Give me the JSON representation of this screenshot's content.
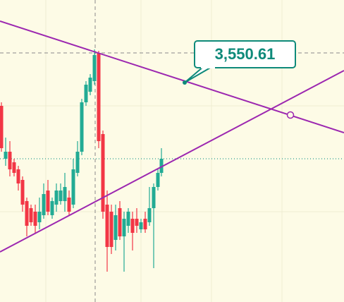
{
  "chart_data": {
    "type": "candlestick",
    "annotations": [
      {
        "text": "3,550.61"
      }
    ]
  }
}
